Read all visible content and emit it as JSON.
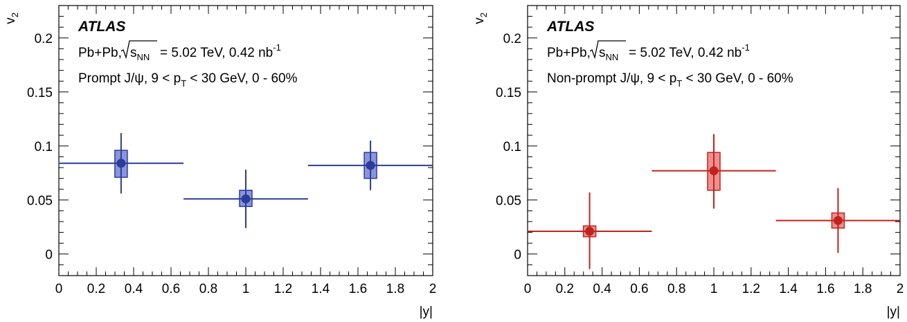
{
  "figure": {
    "panels": [
      {
        "id": "left",
        "experiment": "ATLAS",
        "collision": "Pb+Pb,",
        "energy_label": "= 5.02 TeV, 0.42 nb",
        "energy_sup": "-1",
        "sqrt_main": "s",
        "sqrt_sub": "NN",
        "selection_prefix": "Prompt J/ψ, 9 < p",
        "selection_sub": "T",
        "selection_suffix": " < 30 GeV, 0 - 60%",
        "color": "#2b3c99",
        "fill": "#8a95dd"
      },
      {
        "id": "right",
        "experiment": "ATLAS",
        "collision": "Pb+Pb,",
        "energy_label": "= 5.02 TeV, 0.42 nb",
        "energy_sup": "-1",
        "sqrt_main": "s",
        "sqrt_sub": "NN",
        "selection_prefix": "Non-prompt J/ψ, 9 < p",
        "selection_sub": "T",
        "selection_suffix": " < 30 GeV, 0 - 60%",
        "color": "#c0231f",
        "fill": "#ee8f8d"
      }
    ]
  },
  "chart_data": [
    {
      "type": "scatter",
      "title": "",
      "xlabel": "|y|",
      "ylabel_main": "v",
      "ylabel_sub": "2",
      "xlim": [
        0,
        2
      ],
      "ylim": [
        -0.02,
        0.23
      ],
      "xticks": [
        "0",
        "0.2",
        "0.4",
        "0.6",
        "0.8",
        "1",
        "1.2",
        "1.4",
        "1.6",
        "1.8",
        "2"
      ],
      "yticks": [
        "0",
        "0.05",
        "0.1",
        "0.15",
        "0.2"
      ],
      "points": [
        {
          "x": 0.333,
          "y": 0.084,
          "x_low": 0.0,
          "x_high": 0.667,
          "stat_low": 0.056,
          "stat_high": 0.112,
          "sys_low": 0.071,
          "sys_high": 0.096
        },
        {
          "x": 1.0,
          "y": 0.051,
          "x_low": 0.667,
          "x_high": 1.333,
          "stat_low": 0.024,
          "stat_high": 0.078,
          "sys_low": 0.044,
          "sys_high": 0.059
        },
        {
          "x": 1.667,
          "y": 0.082,
          "x_low": 1.333,
          "x_high": 2.0,
          "stat_low": 0.059,
          "stat_high": 0.105,
          "sys_low": 0.07,
          "sys_high": 0.094
        }
      ]
    },
    {
      "type": "scatter",
      "title": "",
      "xlabel": "|y|",
      "ylabel_main": "v",
      "ylabel_sub": "2",
      "xlim": [
        0,
        2
      ],
      "ylim": [
        -0.02,
        0.23
      ],
      "xticks": [
        "0",
        "0.2",
        "0.4",
        "0.6",
        "0.8",
        "1",
        "1.2",
        "1.4",
        "1.6",
        "1.8",
        "2"
      ],
      "yticks": [
        "0",
        "0.05",
        "0.1",
        "0.15",
        "0.2"
      ],
      "points": [
        {
          "x": 0.333,
          "y": 0.021,
          "x_low": 0.0,
          "x_high": 0.667,
          "stat_low": -0.014,
          "stat_high": 0.057,
          "sys_low": 0.016,
          "sys_high": 0.026
        },
        {
          "x": 1.0,
          "y": 0.077,
          "x_low": 0.667,
          "x_high": 1.333,
          "stat_low": 0.042,
          "stat_high": 0.111,
          "sys_low": 0.059,
          "sys_high": 0.094
        },
        {
          "x": 1.667,
          "y": 0.031,
          "x_low": 1.333,
          "x_high": 2.0,
          "stat_low": 0.001,
          "stat_high": 0.061,
          "sys_low": 0.024,
          "sys_high": 0.038
        }
      ]
    }
  ]
}
